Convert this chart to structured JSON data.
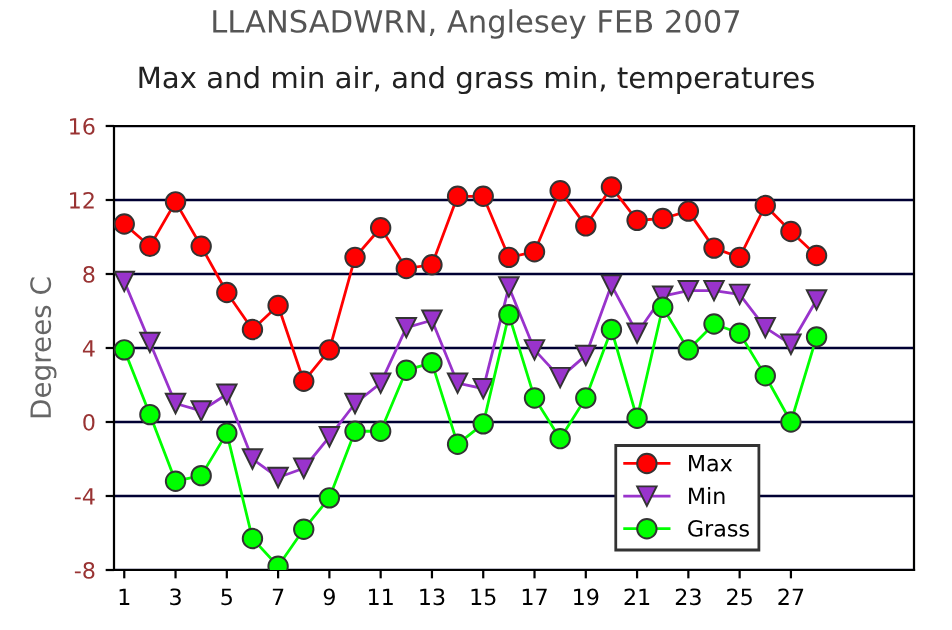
{
  "chart_data": {
    "type": "line",
    "title": "LLANSADWRN, Anglesey FEB 2007",
    "subtitle": "Max and min air, and grass min, temperatures",
    "ylabel": "Degrees C",
    "x": [
      1,
      2,
      3,
      4,
      5,
      6,
      7,
      8,
      9,
      10,
      11,
      12,
      13,
      14,
      15,
      16,
      17,
      18,
      19,
      20,
      21,
      22,
      23,
      24,
      25,
      26,
      27,
      28
    ],
    "series": [
      {
        "name": "Max",
        "color": "#ff0000",
        "marker": "circle",
        "values": [
          10.7,
          9.5,
          11.9,
          9.5,
          7.0,
          5.0,
          6.3,
          2.2,
          3.9,
          8.9,
          10.5,
          8.3,
          8.5,
          12.2,
          12.2,
          8.9,
          9.2,
          12.5,
          10.6,
          12.7,
          10.9,
          11.0,
          11.4,
          9.4,
          8.9,
          11.7,
          10.3,
          9.0
        ]
      },
      {
        "name": "Min",
        "color": "#9933cc",
        "marker": "triangle",
        "values": [
          7.6,
          4.3,
          1.0,
          0.6,
          1.5,
          -2.0,
          -3.0,
          -2.5,
          -0.8,
          1.0,
          2.1,
          5.1,
          5.5,
          2.1,
          1.8,
          7.3,
          3.9,
          2.4,
          3.6,
          7.4,
          4.8,
          6.8,
          7.1,
          7.1,
          6.9,
          5.1,
          4.2,
          6.6
        ]
      },
      {
        "name": "Grass",
        "color": "#00ff00",
        "marker": "circle",
        "values": [
          3.9,
          0.4,
          -3.2,
          -2.9,
          -0.6,
          -6.3,
          -7.8,
          -5.8,
          -4.1,
          -0.5,
          -0.5,
          2.8,
          3.2,
          -1.2,
          -0.1,
          5.8,
          1.3,
          -0.9,
          1.3,
          5.0,
          0.2,
          6.2,
          3.9,
          5.3,
          4.8,
          2.5,
          0.0,
          4.6
        ]
      }
    ],
    "xlim": [
      0.6,
      31.8
    ],
    "xticks": [
      1,
      3,
      5,
      7,
      9,
      11,
      13,
      15,
      17,
      19,
      21,
      23,
      25,
      27
    ],
    "ylim": [
      -8,
      16
    ],
    "yticks": [
      -8,
      -4,
      0,
      4,
      8,
      12,
      16
    ],
    "grid": "y",
    "legend": "bottom right",
    "line_style": "solid"
  }
}
